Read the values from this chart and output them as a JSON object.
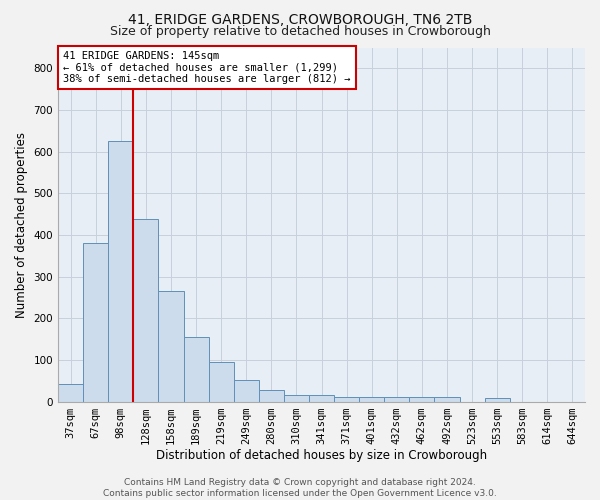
{
  "title": "41, ERIDGE GARDENS, CROWBOROUGH, TN6 2TB",
  "subtitle": "Size of property relative to detached houses in Crowborough",
  "xlabel": "Distribution of detached houses by size in Crowborough",
  "ylabel": "Number of detached properties",
  "categories": [
    "37sqm",
    "67sqm",
    "98sqm",
    "128sqm",
    "158sqm",
    "189sqm",
    "219sqm",
    "249sqm",
    "280sqm",
    "310sqm",
    "341sqm",
    "371sqm",
    "401sqm",
    "432sqm",
    "462sqm",
    "492sqm",
    "523sqm",
    "553sqm",
    "583sqm",
    "614sqm",
    "644sqm"
  ],
  "values": [
    43,
    380,
    625,
    438,
    265,
    155,
    95,
    52,
    27,
    15,
    15,
    10,
    10,
    10,
    10,
    10,
    0,
    8,
    0,
    0,
    0
  ],
  "bar_color": "#ccdcec",
  "bar_edge_color": "#6090b8",
  "grid_color": "#c8d0dc",
  "background_color": "#e8eef5",
  "fig_background_color": "#f2f2f2",
  "annotation_text": "41 ERIDGE GARDENS: 145sqm\n← 61% of detached houses are smaller (1,299)\n38% of semi-detached houses are larger (812) →",
  "annotation_box_color": "#ffffff",
  "annotation_box_edge": "#cc0000",
  "vline_color": "#cc0000",
  "ylim": [
    0,
    850
  ],
  "yticks": [
    0,
    100,
    200,
    300,
    400,
    500,
    600,
    700,
    800
  ],
  "footer": "Contains HM Land Registry data © Crown copyright and database right 2024.\nContains public sector information licensed under the Open Government Licence v3.0.",
  "title_fontsize": 10,
  "subtitle_fontsize": 9,
  "xlabel_fontsize": 8.5,
  "ylabel_fontsize": 8.5,
  "tick_fontsize": 7.5,
  "annotation_fontsize": 7.5,
  "footer_fontsize": 6.5
}
